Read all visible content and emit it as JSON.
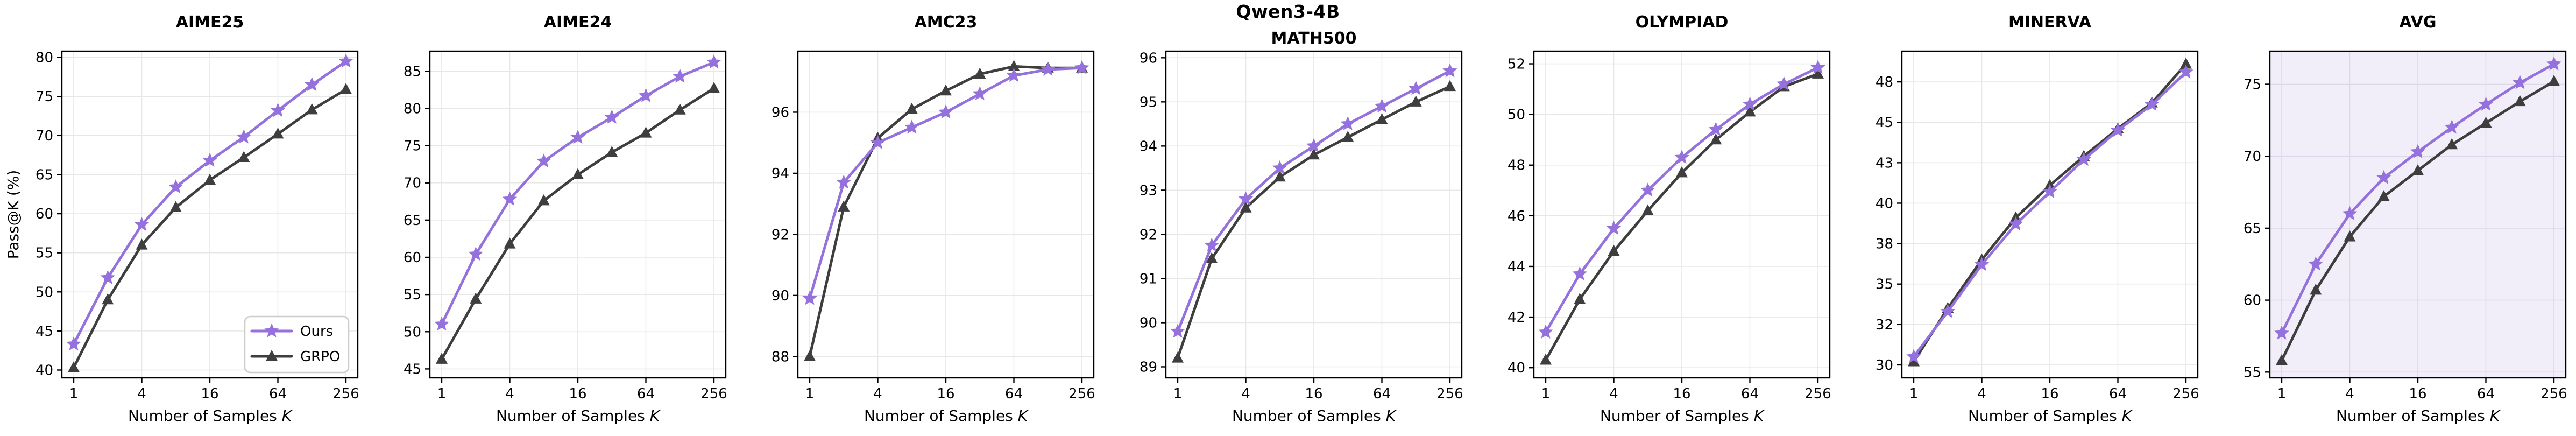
{
  "figure": {
    "suptitle": "Qwen3-4B",
    "xlabel": "Number of Samples",
    "xlabel_var": "K",
    "ylabel": "Pass@K (%)",
    "colors": {
      "ours": "#9471DC",
      "grpo": "#3E3E3E",
      "spine": "#000000",
      "grid": "#e7e7e7",
      "grid_avg": "#ddd8e9",
      "avg_bg": "#f2eef9",
      "legend_border": "#cccccc"
    },
    "legend": [
      {
        "label": "Ours",
        "color": "#9471DC",
        "marker": "star"
      },
      {
        "label": "GRPO",
        "color": "#3E3E3E",
        "marker": "triangle"
      }
    ],
    "legend_position": "lower right of first panel"
  },
  "chart_data": [
    {
      "type": "line",
      "title": "AIME25",
      "x": [
        1,
        2,
        4,
        8,
        16,
        32,
        64,
        128,
        256
      ],
      "xticks": [
        1,
        4,
        16,
        64,
        256
      ],
      "ylim": [
        39.0,
        80.8
      ],
      "yticks": [
        [
          40,
          "40"
        ],
        [
          45,
          "45"
        ],
        [
          50,
          "50"
        ],
        [
          55,
          "55"
        ],
        [
          60,
          "60"
        ],
        [
          65,
          "65"
        ],
        [
          70,
          "70"
        ],
        [
          75,
          "75"
        ],
        [
          80,
          "80"
        ]
      ],
      "series": [
        {
          "name": "Ours",
          "values": [
            43.3,
            51.8,
            58.6,
            63.4,
            66.8,
            69.8,
            73.2,
            76.5,
            79.5
          ]
        },
        {
          "name": "GRPO",
          "values": [
            40.3,
            49.0,
            56.0,
            60.8,
            64.3,
            67.2,
            70.2,
            73.3,
            75.9
          ]
        }
      ],
      "show_legend": true,
      "show_ylabel": true,
      "plot_bg": "#ffffff"
    },
    {
      "type": "line",
      "title": "AIME24",
      "x": [
        1,
        2,
        4,
        8,
        16,
        32,
        64,
        128,
        256
      ],
      "xticks": [
        1,
        4,
        16,
        64,
        256
      ],
      "ylim": [
        43.8,
        87.7
      ],
      "yticks": [
        [
          45,
          "45"
        ],
        [
          50,
          "50"
        ],
        [
          55,
          "55"
        ],
        [
          60,
          "60"
        ],
        [
          65,
          "65"
        ],
        [
          70,
          "70"
        ],
        [
          75,
          "75"
        ],
        [
          80,
          "80"
        ],
        [
          85,
          "85"
        ]
      ],
      "series": [
        {
          "name": "Ours",
          "values": [
            51.0,
            60.4,
            67.8,
            72.9,
            76.1,
            78.8,
            81.7,
            84.3,
            86.2
          ]
        },
        {
          "name": "GRPO",
          "values": [
            46.3,
            54.4,
            61.8,
            67.6,
            71.1,
            74.1,
            76.7,
            79.8,
            82.7
          ]
        }
      ],
      "show_legend": false,
      "show_ylabel": false,
      "plot_bg": "#ffffff"
    },
    {
      "type": "line",
      "title": "AMC23",
      "x": [
        1,
        2,
        4,
        8,
        16,
        32,
        64,
        128,
        256
      ],
      "xticks": [
        1,
        4,
        16,
        64,
        256
      ],
      "ylim": [
        87.3,
        98.0
      ],
      "yticks": [
        [
          88,
          "88"
        ],
        [
          90,
          "90"
        ],
        [
          92,
          "92"
        ],
        [
          94,
          "94"
        ],
        [
          96,
          "96"
        ]
      ],
      "series": [
        {
          "name": "Ours",
          "values": [
            89.9,
            93.7,
            95.0,
            95.5,
            96.0,
            96.6,
            97.2,
            97.4,
            97.45
          ]
        },
        {
          "name": "GRPO",
          "values": [
            88.0,
            92.9,
            95.15,
            96.1,
            96.7,
            97.25,
            97.5,
            97.45,
            97.45
          ]
        }
      ],
      "show_legend": false,
      "show_ylabel": false,
      "plot_bg": "#ffffff"
    },
    {
      "type": "line",
      "title": "MATH500",
      "x": [
        1,
        2,
        4,
        8,
        16,
        32,
        64,
        128,
        256
      ],
      "xticks": [
        1,
        4,
        16,
        64,
        256
      ],
      "ylim": [
        88.75,
        96.15
      ],
      "yticks": [
        [
          89,
          "89"
        ],
        [
          90,
          "90"
        ],
        [
          91,
          "91"
        ],
        [
          92,
          "92"
        ],
        [
          93,
          "93"
        ],
        [
          94,
          "94"
        ],
        [
          95,
          "95"
        ],
        [
          96,
          "96"
        ]
      ],
      "series": [
        {
          "name": "Ours",
          "values": [
            89.8,
            91.75,
            92.8,
            93.5,
            94.0,
            94.5,
            94.9,
            95.3,
            95.7
          ]
        },
        {
          "name": "GRPO",
          "values": [
            89.2,
            91.45,
            92.6,
            93.3,
            93.8,
            94.2,
            94.6,
            95.0,
            95.35
          ]
        }
      ],
      "show_legend": false,
      "show_ylabel": false,
      "plot_bg": "#ffffff"
    },
    {
      "type": "line",
      "title": "OLYMPIAD",
      "x": [
        1,
        2,
        4,
        8,
        16,
        32,
        64,
        128,
        256
      ],
      "xticks": [
        1,
        4,
        16,
        64,
        256
      ],
      "ylim": [
        39.6,
        52.5
      ],
      "yticks": [
        [
          40,
          "40"
        ],
        [
          42,
          "42"
        ],
        [
          44,
          "44"
        ],
        [
          46,
          "46"
        ],
        [
          48,
          "48"
        ],
        [
          50,
          "50"
        ],
        [
          52,
          "52"
        ]
      ],
      "series": [
        {
          "name": "Ours",
          "values": [
            41.4,
            43.7,
            45.5,
            47.0,
            48.3,
            49.4,
            50.4,
            51.2,
            51.85
          ]
        },
        {
          "name": "GRPO",
          "values": [
            40.3,
            42.7,
            44.6,
            46.2,
            47.7,
            49.0,
            50.1,
            51.1,
            51.6
          ]
        }
      ],
      "show_legend": false,
      "show_ylabel": false,
      "plot_bg": "#ffffff"
    },
    {
      "type": "line",
      "title": "MINERVA",
      "x": [
        1,
        2,
        4,
        8,
        16,
        32,
        64,
        128,
        256
      ],
      "xticks": [
        1,
        4,
        16,
        64,
        256
      ],
      "ylim": [
        29.2,
        49.4
      ],
      "yticks": [
        [
          30,
          "30"
        ],
        [
          32.5,
          "32"
        ],
        [
          35,
          "35"
        ],
        [
          37.5,
          "38"
        ],
        [
          40,
          "40"
        ],
        [
          42.5,
          "43"
        ],
        [
          45,
          "45"
        ],
        [
          47.5,
          "48"
        ]
      ],
      "series": [
        {
          "name": "Ours",
          "values": [
            30.5,
            33.3,
            36.2,
            38.7,
            40.7,
            42.7,
            44.5,
            46.1,
            48.1
          ]
        },
        {
          "name": "GRPO",
          "values": [
            30.2,
            33.5,
            36.5,
            39.1,
            41.1,
            42.9,
            44.6,
            46.2,
            48.6
          ]
        }
      ],
      "show_legend": false,
      "show_ylabel": false,
      "plot_bg": "#ffffff"
    },
    {
      "type": "line",
      "title": "AVG",
      "x": [
        1,
        2,
        4,
        8,
        16,
        32,
        64,
        128,
        256
      ],
      "xticks": [
        1,
        4,
        16,
        64,
        256
      ],
      "ylim": [
        54.6,
        77.3
      ],
      "yticks": [
        [
          55,
          "55"
        ],
        [
          60,
          "60"
        ],
        [
          65,
          "65"
        ],
        [
          70,
          "70"
        ],
        [
          75,
          "75"
        ]
      ],
      "series": [
        {
          "name": "Ours",
          "values": [
            57.7,
            62.5,
            66.0,
            68.5,
            70.3,
            72.0,
            73.6,
            75.1,
            76.4
          ]
        },
        {
          "name": "GRPO",
          "values": [
            55.8,
            60.7,
            64.4,
            67.2,
            69.0,
            70.8,
            72.3,
            73.8,
            75.2
          ]
        }
      ],
      "show_legend": false,
      "show_ylabel": false,
      "plot_bg": "#f2eef9"
    }
  ]
}
